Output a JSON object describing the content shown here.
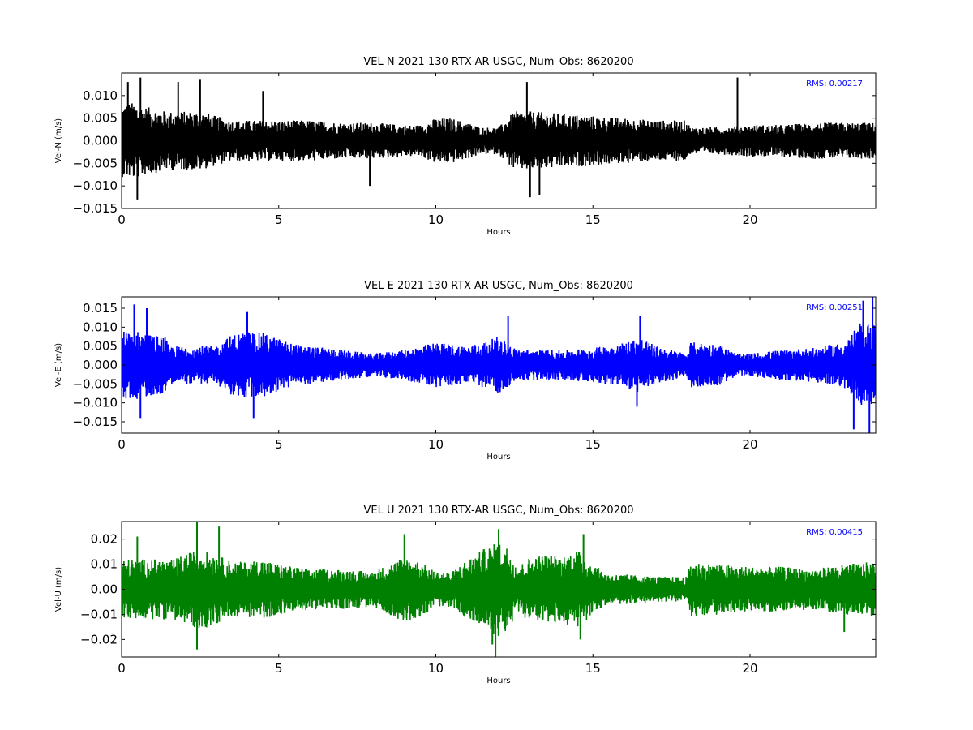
{
  "chart_data": [
    {
      "type": "line",
      "title": "VEL N 2021 130 RTX-AR  USGC, Num_Obs: 8620200",
      "xlabel": "Hours",
      "ylabel": "Vel-N (m/s)",
      "xlim": [
        0,
        24
      ],
      "ylim": [
        -0.015,
        0.015
      ],
      "x_ticks": [
        0,
        5,
        10,
        15,
        20
      ],
      "y_ticks": [
        -0.015,
        -0.01,
        -0.005,
        0.0,
        0.005,
        0.01
      ],
      "y_tick_labels": [
        "−0.015",
        "−0.010",
        "−0.005",
        "0.000",
        "0.005",
        "0.010"
      ],
      "rms_text": "RMS:  0.00217",
      "color": "#000000",
      "series": [
        {
          "x": [
            0,
            0.4,
            0.8,
            1.2,
            1.4,
            1.5,
            2,
            2.5,
            3,
            3.5,
            4,
            5,
            6,
            7,
            8,
            9,
            9.5,
            10,
            10.5,
            11,
            11.5,
            12,
            12.5,
            13,
            14,
            15,
            16,
            17,
            18,
            18.1,
            18.2,
            19,
            20,
            21,
            22,
            23,
            24
          ],
          "envelope": [
            0.008,
            0.0085,
            0.0075,
            0.007,
            0.0065,
            0.0065,
            0.0065,
            0.0065,
            0.0055,
            0.0045,
            0.0045,
            0.0045,
            0.0045,
            0.004,
            0.004,
            0.0035,
            0.0035,
            0.005,
            0.005,
            0.004,
            0.003,
            0.003,
            0.0065,
            0.0065,
            0.006,
            0.0055,
            0.005,
            0.0045,
            0.0045,
            0.003,
            0.003,
            0.003,
            0.0035,
            0.0035,
            0.004,
            0.004,
            0.004
          ],
          "spikes": [
            [
              0.2,
              0.013
            ],
            [
              0.5,
              -0.013
            ],
            [
              0.6,
              0.014
            ],
            [
              1.8,
              0.013
            ],
            [
              2.5,
              0.0135
            ],
            [
              4.5,
              0.011
            ],
            [
              12.9,
              0.013
            ],
            [
              13,
              -0.0125
            ],
            [
              19.6,
              0.014
            ],
            [
              7.9,
              -0.01
            ],
            [
              13.3,
              -0.012
            ]
          ]
        }
      ]
    },
    {
      "type": "line",
      "title": "VEL E 2021 130 RTX-AR  USGC, Num_Obs: 8620200",
      "xlabel": "Hours",
      "ylabel": "Vel-E (m/s)",
      "xlim": [
        0,
        24
      ],
      "ylim": [
        -0.018,
        0.018
      ],
      "x_ticks": [
        0,
        5,
        10,
        15,
        20
      ],
      "y_ticks": [
        -0.015,
        -0.01,
        -0.005,
        0.0,
        0.005,
        0.01,
        0.015
      ],
      "y_tick_labels": [
        "−0.015",
        "−0.010",
        "−0.005",
        "0.000",
        "0.005",
        "0.010",
        "0.015"
      ],
      "rms_text": "RMS:  0.00251",
      "color": "#0000ff",
      "series": [
        {
          "x": [
            0,
            0.5,
            1,
            1.4,
            1.5,
            2,
            3,
            3.5,
            4,
            4.5,
            5,
            5.5,
            6,
            7,
            8,
            9,
            10,
            11,
            11.5,
            12,
            12.5,
            13,
            14,
            15,
            16,
            16.5,
            17,
            18,
            18.1,
            18.2,
            19,
            19.6,
            20,
            21,
            22,
            23,
            23.5,
            24
          ],
          "envelope": [
            0.009,
            0.009,
            0.008,
            0.0075,
            0.005,
            0.005,
            0.005,
            0.008,
            0.009,
            0.0085,
            0.007,
            0.0055,
            0.005,
            0.004,
            0.003,
            0.004,
            0.006,
            0.005,
            0.006,
            0.0075,
            0.0045,
            0.004,
            0.004,
            0.0045,
            0.006,
            0.0075,
            0.005,
            0.003,
            0.006,
            0.006,
            0.0055,
            0.003,
            0.003,
            0.004,
            0.0045,
            0.006,
            0.011,
            0.011
          ],
          "spikes": [
            [
              0.4,
              0.016
            ],
            [
              0.6,
              -0.014
            ],
            [
              0.8,
              0.015
            ],
            [
              4,
              0.014
            ],
            [
              4.2,
              -0.014
            ],
            [
              16.5,
              0.013
            ],
            [
              16.4,
              -0.011
            ],
            [
              23.3,
              -0.017
            ],
            [
              23.6,
              0.017
            ],
            [
              23.8,
              -0.018
            ],
            [
              23.9,
              0.018
            ],
            [
              12.3,
              0.013
            ]
          ]
        }
      ]
    },
    {
      "type": "line",
      "title": "VEL U 2021 130 RTX-AR  USGC, Num_Obs: 8620200",
      "xlabel": "Hours",
      "ylabel": "Vel-U (m/s)",
      "xlim": [
        0,
        24
      ],
      "ylim": [
        -0.027,
        0.027
      ],
      "x_ticks": [
        0,
        5,
        10,
        15,
        20
      ],
      "y_ticks": [
        -0.02,
        -0.01,
        0.0,
        0.01,
        0.02
      ],
      "y_tick_labels": [
        "−0.02",
        "−0.01",
        "0.00",
        "0.01",
        "0.02"
      ],
      "rms_text": "RMS:  0.00415",
      "color": "#008000",
      "series": [
        {
          "x": [
            0,
            0.5,
            1,
            1.4,
            1.5,
            2,
            2.5,
            3,
            3.5,
            4,
            4.5,
            5,
            6,
            7,
            8,
            8.5,
            9,
            9.5,
            10,
            10.5,
            11,
            11.5,
            12,
            12.3,
            12.6,
            13,
            13.5,
            14,
            14.5,
            15,
            15.5,
            16,
            17,
            18,
            18.1,
            18.2,
            19,
            20,
            21,
            22,
            23,
            24
          ],
          "envelope": [
            0.012,
            0.012,
            0.012,
            0.012,
            0.011,
            0.014,
            0.016,
            0.014,
            0.011,
            0.011,
            0.012,
            0.01,
            0.008,
            0.008,
            0.007,
            0.01,
            0.013,
            0.011,
            0.007,
            0.007,
            0.012,
            0.016,
            0.019,
            0.017,
            0.009,
            0.013,
            0.014,
            0.013,
            0.016,
            0.01,
            0.006,
            0.006,
            0.005,
            0.005,
            0.011,
            0.011,
            0.01,
            0.009,
            0.009,
            0.008,
            0.01,
            0.011
          ],
          "spikes": [
            [
              2.4,
              0.027
            ],
            [
              2.4,
              -0.024
            ],
            [
              3.1,
              0.025
            ],
            [
              9,
              0.022
            ],
            [
              12,
              0.024
            ],
            [
              11.8,
              -0.022
            ],
            [
              11.9,
              -0.027
            ],
            [
              14.7,
              0.022
            ],
            [
              14.6,
              -0.02
            ],
            [
              0.5,
              0.021
            ],
            [
              23,
              -0.017
            ]
          ]
        }
      ]
    }
  ]
}
